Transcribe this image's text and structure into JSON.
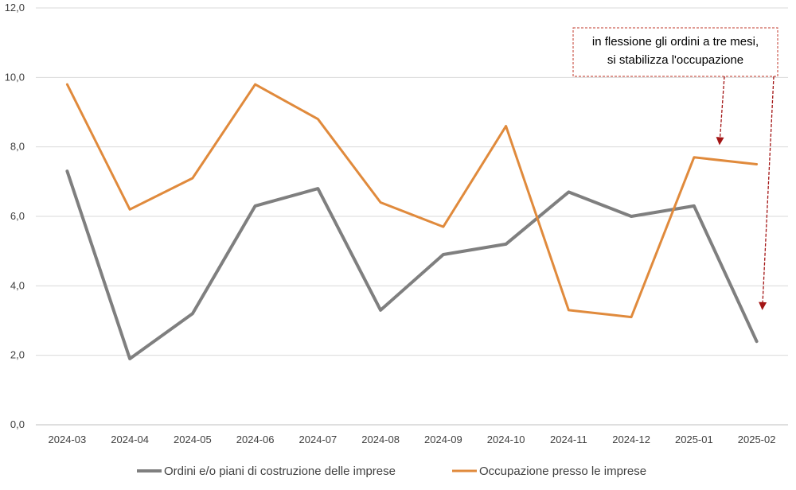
{
  "chart_data": {
    "type": "line",
    "categories": [
      "2024-03",
      "2024-04",
      "2024-05",
      "2024-06",
      "2024-07",
      "2024-08",
      "2024-09",
      "2024-10",
      "2024-11",
      "2024-12",
      "2025-01",
      "2025-02"
    ],
    "series": [
      {
        "name": "Ordini e/o piani di costruzione delle imprese",
        "color": "#7f7f7f",
        "values": [
          7.3,
          1.9,
          3.2,
          6.3,
          6.8,
          3.3,
          4.9,
          5.2,
          6.7,
          6.0,
          6.3,
          2.4
        ]
      },
      {
        "name": "Occupazione presso le imprese",
        "color": "#e08a3c",
        "values": [
          9.8,
          6.2,
          7.1,
          9.8,
          8.8,
          6.4,
          5.7,
          8.6,
          3.3,
          3.1,
          7.7,
          7.5
        ]
      }
    ],
    "ylim": [
      0,
      12
    ],
    "yticks": [
      "0,0",
      "2,0",
      "4,0",
      "6,0",
      "8,0",
      "10,0",
      "12,0"
    ],
    "grid": true,
    "legend": "bottom",
    "annotation": {
      "lines": [
        "in flessione gli ordini a tre mesi,",
        "si stabilizza l'occupazione"
      ],
      "border_color": "#c0392b",
      "arrow_color": "#a31515",
      "arrow_targets": [
        {
          "x": "2025-01",
          "y": 8.05
        },
        {
          "x": "2025-02",
          "y": 3.3
        }
      ]
    }
  }
}
